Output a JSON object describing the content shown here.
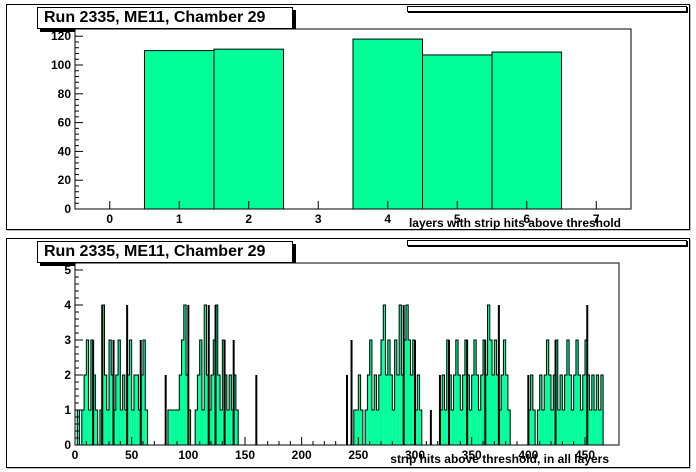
{
  "colors": {
    "fill": "#00ff99",
    "line": "#000000",
    "frame": "#000000"
  },
  "chart_data": [
    {
      "type": "bar",
      "title": "Run 2335, ME11, Chamber 29",
      "xlabel": "layers with strip hits above threshold",
      "xlim": [
        -0.5,
        7.5
      ],
      "ylim": [
        0,
        125
      ],
      "xticks": [
        0,
        1,
        2,
        3,
        4,
        5,
        6,
        7
      ],
      "yticks": [
        0,
        20,
        40,
        60,
        80,
        100,
        120
      ],
      "categories": [
        0,
        1,
        2,
        3,
        4,
        5,
        6,
        7
      ],
      "values": [
        0,
        110,
        111,
        0,
        118,
        107,
        109,
        0
      ]
    },
    {
      "type": "bar",
      "title": "Run 2335, ME11, Chamber 29",
      "xlabel": "strip hits above threshold, in all layers",
      "xlim": [
        0,
        480
      ],
      "ylim": [
        0,
        5.2
      ],
      "xticks": [
        0,
        50,
        100,
        150,
        200,
        250,
        300,
        350,
        400,
        450
      ],
      "yticks": [
        0,
        1,
        2,
        3,
        4,
        5
      ],
      "bin_width": 2,
      "bins": [
        [
          2,
          1
        ],
        [
          4,
          0
        ],
        [
          6,
          1
        ],
        [
          8,
          2
        ],
        [
          10,
          3
        ],
        [
          12,
          1
        ],
        [
          14,
          3
        ],
        [
          16,
          2
        ],
        [
          18,
          1
        ],
        [
          20,
          0
        ],
        [
          22,
          1
        ],
        [
          24,
          4
        ],
        [
          26,
          2
        ],
        [
          28,
          1
        ],
        [
          30,
          3
        ],
        [
          32,
          2
        ],
        [
          34,
          1
        ],
        [
          36,
          2
        ],
        [
          38,
          3
        ],
        [
          40,
          1
        ],
        [
          42,
          2
        ],
        [
          44,
          1
        ],
        [
          46,
          2
        ],
        [
          48,
          3
        ],
        [
          50,
          1
        ],
        [
          52,
          2
        ],
        [
          54,
          2
        ],
        [
          56,
          1
        ],
        [
          58,
          2
        ],
        [
          60,
          3
        ],
        [
          62,
          1
        ],
        [
          64,
          0
        ],
        [
          66,
          0
        ],
        [
          68,
          0
        ],
        [
          70,
          0
        ],
        [
          72,
          0
        ],
        [
          74,
          0
        ],
        [
          76,
          0
        ],
        [
          78,
          0
        ],
        [
          82,
          1
        ],
        [
          84,
          1
        ],
        [
          86,
          1
        ],
        [
          88,
          1
        ],
        [
          90,
          1
        ],
        [
          92,
          2
        ],
        [
          94,
          3
        ],
        [
          96,
          4
        ],
        [
          98,
          2
        ],
        [
          100,
          1
        ],
        [
          102,
          0
        ],
        [
          104,
          0
        ],
        [
          106,
          1
        ],
        [
          108,
          2
        ],
        [
          110,
          3
        ],
        [
          112,
          1
        ],
        [
          114,
          4
        ],
        [
          116,
          2
        ],
        [
          118,
          1
        ],
        [
          120,
          2
        ],
        [
          122,
          3
        ],
        [
          124,
          4
        ],
        [
          126,
          2
        ],
        [
          128,
          1
        ],
        [
          130,
          3
        ],
        [
          132,
          2
        ],
        [
          134,
          1
        ],
        [
          136,
          2
        ],
        [
          138,
          1
        ],
        [
          140,
          2
        ],
        [
          142,
          1
        ],
        [
          144,
          0
        ],
        [
          246,
          1
        ],
        [
          248,
          1
        ],
        [
          250,
          2
        ],
        [
          252,
          1
        ],
        [
          254,
          0
        ],
        [
          256,
          1
        ],
        [
          258,
          2
        ],
        [
          260,
          3
        ],
        [
          262,
          1
        ],
        [
          264,
          2
        ],
        [
          266,
          1
        ],
        [
          268,
          2
        ],
        [
          270,
          3
        ],
        [
          272,
          4
        ],
        [
          274,
          2
        ],
        [
          276,
          3
        ],
        [
          278,
          2
        ],
        [
          280,
          1
        ],
        [
          282,
          3
        ],
        [
          284,
          2
        ],
        [
          286,
          4
        ],
        [
          288,
          2
        ],
        [
          290,
          3
        ],
        [
          292,
          4
        ],
        [
          294,
          3
        ],
        [
          296,
          2
        ],
        [
          298,
          3
        ],
        [
          300,
          1
        ],
        [
          302,
          2
        ],
        [
          304,
          1
        ],
        [
          306,
          0
        ],
        [
          322,
          1
        ],
        [
          324,
          2
        ],
        [
          326,
          1
        ],
        [
          328,
          3
        ],
        [
          330,
          2
        ],
        [
          332,
          1
        ],
        [
          334,
          2
        ],
        [
          336,
          3
        ],
        [
          338,
          2
        ],
        [
          340,
          1
        ],
        [
          342,
          2
        ],
        [
          344,
          3
        ],
        [
          346,
          2
        ],
        [
          348,
          1
        ],
        [
          350,
          2
        ],
        [
          352,
          3
        ],
        [
          354,
          2
        ],
        [
          356,
          1
        ],
        [
          358,
          2
        ],
        [
          360,
          3
        ],
        [
          362,
          2
        ],
        [
          364,
          4
        ],
        [
          366,
          3
        ],
        [
          368,
          2
        ],
        [
          370,
          3
        ],
        [
          372,
          2
        ],
        [
          374,
          1
        ],
        [
          376,
          2
        ],
        [
          378,
          3
        ],
        [
          380,
          2
        ],
        [
          382,
          1
        ],
        [
          384,
          0
        ],
        [
          400,
          1
        ],
        [
          402,
          2
        ],
        [
          404,
          1
        ],
        [
          406,
          0
        ],
        [
          408,
          1
        ],
        [
          410,
          2
        ],
        [
          412,
          1
        ],
        [
          414,
          2
        ],
        [
          416,
          3
        ],
        [
          418,
          2
        ],
        [
          420,
          1
        ],
        [
          422,
          2
        ],
        [
          424,
          3
        ],
        [
          426,
          1
        ],
        [
          428,
          2
        ],
        [
          430,
          1
        ],
        [
          432,
          2
        ],
        [
          434,
          3
        ],
        [
          436,
          2
        ],
        [
          438,
          1
        ],
        [
          440,
          2
        ],
        [
          442,
          3
        ],
        [
          444,
          2
        ],
        [
          446,
          1
        ],
        [
          448,
          2
        ],
        [
          450,
          3
        ],
        [
          452,
          2
        ],
        [
          454,
          1
        ],
        [
          456,
          2
        ],
        [
          458,
          1
        ],
        [
          460,
          2
        ],
        [
          462,
          1
        ],
        [
          464,
          2
        ]
      ],
      "spikes": [
        [
          16,
          3
        ],
        [
          24,
          4
        ],
        [
          34,
          3
        ],
        [
          46,
          4
        ],
        [
          58,
          3
        ],
        [
          80,
          2
        ],
        [
          100,
          4
        ],
        [
          118,
          4
        ],
        [
          124,
          4
        ],
        [
          132,
          3
        ],
        [
          140,
          3
        ],
        [
          160,
          2
        ],
        [
          240,
          2
        ],
        [
          244,
          3
        ],
        [
          290,
          4
        ],
        [
          300,
          3
        ],
        [
          314,
          1
        ],
        [
          322,
          2
        ],
        [
          330,
          3
        ],
        [
          346,
          3
        ],
        [
          362,
          3
        ],
        [
          374,
          4
        ],
        [
          400,
          2
        ],
        [
          424,
          3
        ],
        [
          452,
          4
        ]
      ]
    }
  ]
}
